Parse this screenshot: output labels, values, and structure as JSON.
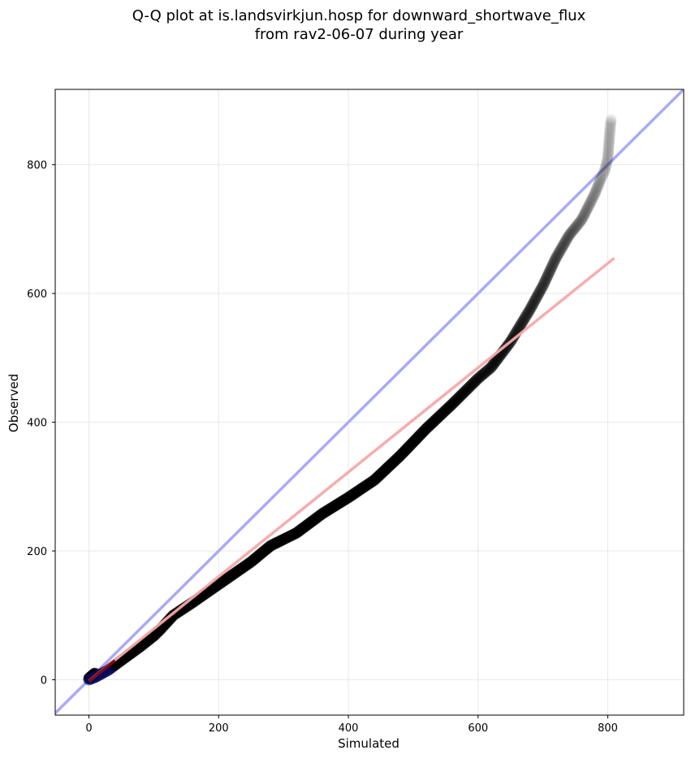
{
  "chart_data": {
    "type": "scatter",
    "title": [
      "Q-Q plot at is.landsvirkjun.hosp for downward_shortwave_flux",
      "from rav2-06-07 during year"
    ],
    "xlabel": "Simulated",
    "ylabel": "Observed",
    "xlim": [
      -52,
      917
    ],
    "ylim": [
      -55,
      917
    ],
    "xticks": [
      0,
      200,
      400,
      600,
      800
    ],
    "yticks": [
      0,
      200,
      400,
      600,
      800
    ],
    "grid": true,
    "reference_line": {
      "name": "1:1",
      "color": "#aaaaf8",
      "points": [
        [
          -52,
          -52
        ],
        [
          917,
          917
        ]
      ]
    },
    "fit_line": {
      "color": "#f7a8aa",
      "points": [
        [
          0,
          -2
        ],
        [
          810,
          655
        ]
      ]
    },
    "quantile_curve": [
      [
        0,
        0
      ],
      [
        10,
        4
      ],
      [
        30,
        15
      ],
      [
        50,
        30
      ],
      [
        80,
        52
      ],
      [
        100,
        68
      ],
      [
        110,
        78
      ],
      [
        130,
        100
      ],
      [
        160,
        120
      ],
      [
        200,
        148
      ],
      [
        250,
        183
      ],
      [
        280,
        208
      ],
      [
        320,
        228
      ],
      [
        360,
        258
      ],
      [
        400,
        283
      ],
      [
        440,
        310
      ],
      [
        480,
        348
      ],
      [
        520,
        390
      ],
      [
        560,
        428
      ],
      [
        600,
        468
      ],
      [
        620,
        485
      ],
      [
        650,
        525
      ],
      [
        680,
        575
      ],
      [
        700,
        612
      ],
      [
        720,
        655
      ],
      [
        740,
        690
      ],
      [
        760,
        715
      ],
      [
        780,
        755
      ],
      [
        790,
        780
      ],
      [
        795,
        790
      ],
      [
        800,
        810
      ],
      [
        803,
        850
      ],
      [
        805,
        870
      ]
    ],
    "colors": {
      "points": "#000000",
      "low_points": "#0a0a5a",
      "low_fit": "#8b0000",
      "grid": "#e8e8e8"
    }
  }
}
